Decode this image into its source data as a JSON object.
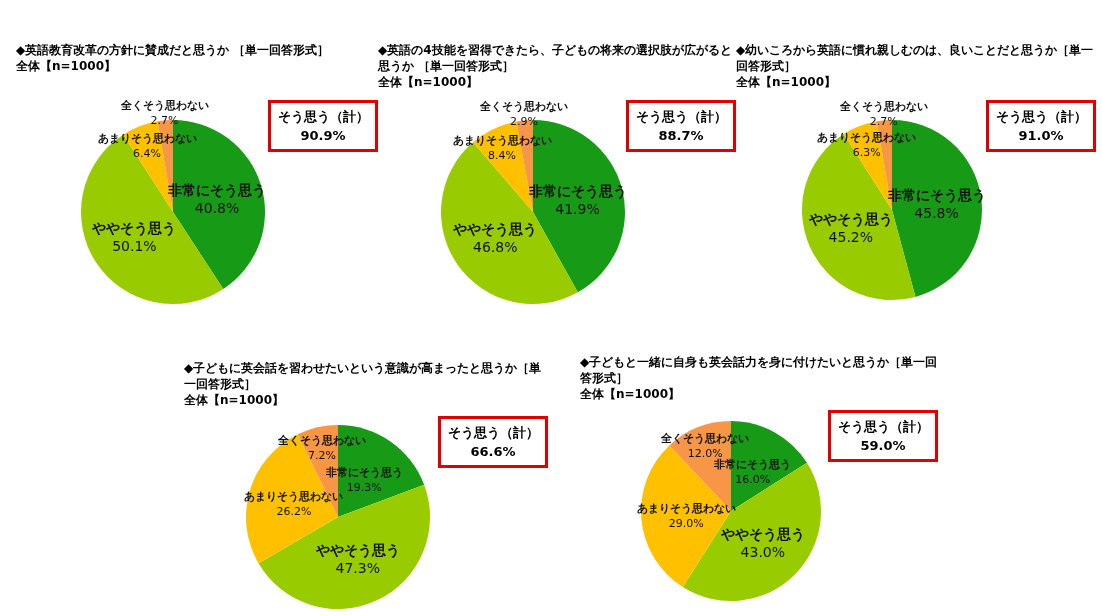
{
  "chart_data": [
    {
      "type": "pie",
      "title": "◆英語教育改革の方針に賛成だと思うか ［単一回答形式］",
      "subtitle": "全体【n=1000】",
      "categories": [
        "非常にそう思う",
        "ややそう思う",
        "あまりそう思わない",
        "全くそう思わない"
      ],
      "values": [
        40.8,
        50.1,
        6.4,
        2.7
      ],
      "value_labels": [
        "40.8%",
        "50.1%",
        "6.4%",
        "2.7%"
      ],
      "colors": [
        "#179b17",
        "#99cc00",
        "#ffc000",
        "#f79646"
      ],
      "annotations": [
        "そう思う（計）\n90.9%"
      ]
    },
    {
      "type": "pie",
      "title": "◆英語の4技能を習得できたら、子どもの将来の選択肢が広がると思うか ［単一回答形式］",
      "subtitle": "全体【n=1000】",
      "categories": [
        "非常にそう思う",
        "ややそう思う",
        "あまりそう思わない",
        "全くそう思わない"
      ],
      "values": [
        41.9,
        46.8,
        8.4,
        2.9
      ],
      "value_labels": [
        "41.9%",
        "46.8%",
        "8.4%",
        "2.9%"
      ],
      "colors": [
        "#179b17",
        "#99cc00",
        "#ffc000",
        "#f79646"
      ],
      "annotations": [
        "そう思う（計）\n88.7%"
      ]
    },
    {
      "type": "pie",
      "title": "◆幼いころから英語に慣れ親しむのは、良いことだと思うか［単一回答形式］",
      "subtitle": "全体【n=1000】",
      "categories": [
        "非常にそう思う",
        "ややそう思う",
        "あまりそう思わない",
        "全くそう思わない"
      ],
      "values": [
        45.8,
        45.2,
        6.3,
        2.7
      ],
      "value_labels": [
        "45.8%",
        "45.2%",
        "6.3%",
        "2.7%"
      ],
      "colors": [
        "#179b17",
        "#99cc00",
        "#ffc000",
        "#f79646"
      ],
      "annotations": [
        "そう思う（計）\n91.0%"
      ]
    },
    {
      "type": "pie",
      "title": "◆子どもに英会話を習わせたいという意識が高まったと思うか［単一回答形式］",
      "subtitle": "全体【n=1000】",
      "categories": [
        "非常にそう思う",
        "ややそう思う",
        "あまりそう思わない",
        "全くそう思わない"
      ],
      "values": [
        19.3,
        47.3,
        26.2,
        7.2
      ],
      "value_labels": [
        "19.3%",
        "47.3%",
        "26.2%",
        "7.2%"
      ],
      "colors": [
        "#179b17",
        "#99cc00",
        "#ffc000",
        "#f79646"
      ],
      "annotations": [
        "そう思う（計）\n66.6%"
      ]
    },
    {
      "type": "pie",
      "title": "◆子どもと一緒に自身も英会話力を身に付けたいと思うか［単一回答形式］",
      "subtitle": "全体【n=1000】",
      "categories": [
        "非常にそう思う",
        "ややそう思う",
        "あまりそう思わない",
        "全くそう思わない"
      ],
      "values": [
        16.0,
        43.0,
        29.0,
        12.0
      ],
      "value_labels": [
        "16.0%",
        "43.0%",
        "29.0%",
        "12.0%"
      ],
      "colors": [
        "#179b17",
        "#99cc00",
        "#ffc000",
        "#f79646"
      ],
      "annotations": [
        "そう思う（計）\n59.0%"
      ]
    }
  ]
}
